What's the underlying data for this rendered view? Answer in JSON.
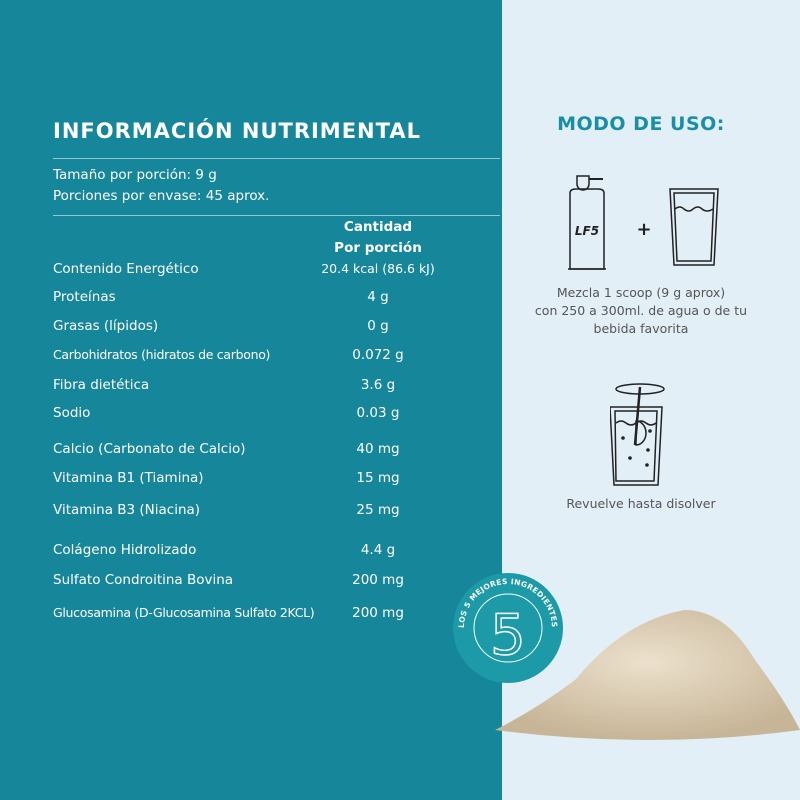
{
  "nutrition": {
    "title": "INFORMACIÓN NUTRIMENTAL",
    "serving_size": "Tamaño por porción: 9 g",
    "servings_per_container": "Porciones por envase: 45 aprox.",
    "column_header_1": "Cantidad",
    "column_header_2": "Por porción",
    "rows": [
      {
        "label": "Contenido Energético",
        "value": "20.4 kcal (86.6 kJ)"
      },
      {
        "label": "Proteínas",
        "value": "4 g"
      },
      {
        "label": "Grasas (lípidos)",
        "value": "0 g"
      },
      {
        "label": "Carbohidratos (hidratos de carbono)",
        "value": "0.072 g"
      },
      {
        "label": "Fibra dietética",
        "value": "3.6 g"
      },
      {
        "label": "Sodio",
        "value": "0.03 g"
      },
      {
        "label": "Calcio (Carbonato de Calcio)",
        "value": "40 mg"
      },
      {
        "label": "Vitamina B1 (Tiamina)",
        "value": "15 mg"
      },
      {
        "label": "Vitamina B3 (Niacina)",
        "value": "25 mg"
      },
      {
        "label": "Colágeno Hidrolizado",
        "value": "4.4 g"
      },
      {
        "label": "Sulfato Condroitina Bovina",
        "value": "200 mg"
      },
      {
        "label": "Glucosamina (D-Glucosamina Sulfato 2KCL)",
        "value": "200 mg"
      }
    ]
  },
  "usage": {
    "title": "MODO DE USO:",
    "container_label": "LF5",
    "plus": "+",
    "step1_line1": "Mezcla 1 scoop (9 g aprox)",
    "step1_line2": "con  250 a 300ml. de agua o de tu",
    "step1_line3": "bebida favorita",
    "step2": "Revuelve hasta disolver"
  },
  "badge": {
    "number": "5",
    "text": "LOS 5 MEJORES INGREDIENTES"
  },
  "colors": {
    "teal": "#16869a",
    "light": "#e3eff7",
    "accent": "#1a8ea3"
  }
}
